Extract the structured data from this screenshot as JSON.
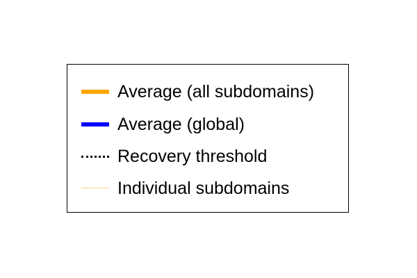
{
  "chart_data": {
    "type": "line",
    "legend": {
      "entries": [
        {
          "label": "Average (all subdomains)",
          "color": "#ffa500",
          "style": "solid",
          "weight": "thick"
        },
        {
          "label": "Average (global)",
          "color": "#0000ff",
          "style": "solid",
          "weight": "thick"
        },
        {
          "label": "Recovery threshold",
          "color": "#000000",
          "style": "dotted",
          "weight": "medium"
        },
        {
          "label": "Individual subdomains",
          "color": "#ffd27f",
          "style": "solid",
          "weight": "thin"
        }
      ]
    }
  }
}
